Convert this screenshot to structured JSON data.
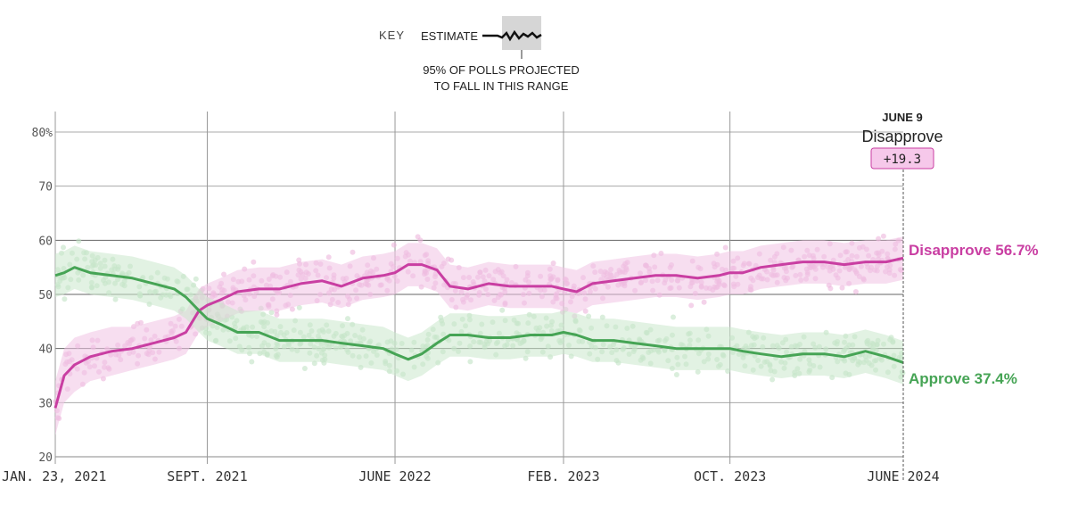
{
  "key": {
    "title": "KEY",
    "estimate_label": "ESTIMATE",
    "range_label_line1": "95% OF POLLS PROJECTED",
    "range_label_line2": "TO FALL IN THIS RANGE"
  },
  "annotation": {
    "date": "JUNE 9",
    "series": "Disapprove",
    "value": "+19.3"
  },
  "chart_data": {
    "type": "line",
    "title": "",
    "xlabel": "",
    "ylabel": "",
    "ylim": [
      20,
      80
    ],
    "y_ticks": [
      "20",
      "30",
      "40",
      "50",
      "60",
      "70",
      "80%"
    ],
    "y_tick_values": [
      20,
      30,
      40,
      50,
      60,
      70,
      80
    ],
    "x_ticks": [
      "JAN. 23, 2021",
      "SEPT. 2021",
      "JUNE 2022",
      "FEB. 2023",
      "OCT. 2023",
      "JUNE 2024"
    ],
    "x_tick_values": [
      "2021-01-23",
      "2021-09-01",
      "2022-06-01",
      "2023-02-01",
      "2023-10-01",
      "2024-06-09"
    ],
    "grid": true,
    "series": [
      {
        "name": "Disapprove",
        "end_label": "Disapprove 56.7%",
        "color": "#c93ea2",
        "band_color": "#f0c3e4",
        "dot_color": "#ecb5dc",
        "x": [
          "2021-01-23",
          "2021-02-05",
          "2021-02-20",
          "2021-03-15",
          "2021-04-15",
          "2021-05-15",
          "2021-06-15",
          "2021-07-15",
          "2021-08-01",
          "2021-08-20",
          "2021-09-01",
          "2021-09-20",
          "2021-10-15",
          "2021-11-15",
          "2021-12-15",
          "2022-01-15",
          "2022-02-15",
          "2022-03-15",
          "2022-04-15",
          "2022-05-15",
          "2022-06-01",
          "2022-06-20",
          "2022-07-10",
          "2022-08-01",
          "2022-08-20",
          "2022-09-15",
          "2022-10-15",
          "2022-11-15",
          "2022-12-15",
          "2023-01-15",
          "2023-02-01",
          "2023-02-20",
          "2023-03-15",
          "2023-04-15",
          "2023-05-15",
          "2023-06-15",
          "2023-07-15",
          "2023-08-15",
          "2023-09-15",
          "2023-10-01",
          "2023-10-20",
          "2023-11-15",
          "2023-12-15",
          "2024-01-15",
          "2024-02-15",
          "2024-03-15",
          "2024-04-15",
          "2024-05-15",
          "2024-06-09"
        ],
        "values": [
          29,
          35,
          37,
          38.5,
          39.5,
          40,
          41,
          42,
          43,
          47,
          48,
          49,
          50.5,
          51,
          51,
          52,
          52.5,
          51.5,
          53,
          53.5,
          54,
          55.5,
          55.5,
          54.5,
          51.5,
          51,
          52,
          51.5,
          51.5,
          51.5,
          51,
          50.5,
          52,
          52.5,
          53,
          53.5,
          53.5,
          53,
          53.5,
          54,
          54,
          55,
          55.5,
          56,
          56,
          55.5,
          56,
          56,
          56.7
        ],
        "band_lo": [
          24,
          30,
          32,
          34,
          35,
          36,
          37,
          38,
          39,
          43,
          44,
          45,
          46.5,
          47,
          47,
          48,
          48.5,
          47.5,
          49,
          49.5,
          50,
          51.5,
          51.5,
          50.5,
          47.5,
          47,
          48,
          47.5,
          47.5,
          47.5,
          47,
          46.5,
          48,
          48.5,
          49,
          49.5,
          49.5,
          49,
          49.5,
          50,
          50,
          51,
          51.5,
          52,
          52,
          51.5,
          52,
          52,
          52.7
        ],
        "band_hi": [
          34,
          40,
          42,
          43,
          44,
          44,
          45,
          46,
          47,
          51,
          52,
          53,
          54.5,
          55,
          55,
          56,
          56.5,
          55.5,
          57,
          57.5,
          58,
          59.5,
          59.5,
          58.5,
          55.5,
          55,
          56,
          55.5,
          55.5,
          55.5,
          55,
          54.5,
          56,
          56.5,
          57,
          57.5,
          57.5,
          57,
          57.5,
          58,
          58,
          59,
          59.5,
          60,
          60,
          59.5,
          60,
          60,
          60.7
        ]
      },
      {
        "name": "Approve",
        "end_label": "Approve 37.4%",
        "color": "#46a455",
        "band_color": "#cbe8cc",
        "dot_color": "#c2e2c4",
        "x": [
          "2021-01-23",
          "2021-02-05",
          "2021-02-20",
          "2021-03-15",
          "2021-04-15",
          "2021-05-15",
          "2021-06-15",
          "2021-07-15",
          "2021-08-01",
          "2021-08-20",
          "2021-09-01",
          "2021-09-20",
          "2021-10-15",
          "2021-11-15",
          "2021-12-15",
          "2022-01-15",
          "2022-02-15",
          "2022-03-15",
          "2022-04-15",
          "2022-05-15",
          "2022-06-01",
          "2022-06-20",
          "2022-07-10",
          "2022-08-01",
          "2022-08-20",
          "2022-09-15",
          "2022-10-15",
          "2022-11-15",
          "2022-12-15",
          "2023-01-15",
          "2023-02-01",
          "2023-02-20",
          "2023-03-15",
          "2023-04-15",
          "2023-05-15",
          "2023-06-15",
          "2023-07-15",
          "2023-08-15",
          "2023-09-15",
          "2023-10-01",
          "2023-10-20",
          "2023-11-15",
          "2023-12-15",
          "2024-01-15",
          "2024-02-15",
          "2024-03-15",
          "2024-04-15",
          "2024-05-15",
          "2024-06-09"
        ],
        "values": [
          53.5,
          54,
          55,
          54,
          53.5,
          53,
          52,
          51,
          49.5,
          47,
          45.5,
          44.5,
          43,
          43,
          41.5,
          41.5,
          41.5,
          41,
          40.5,
          40,
          39,
          38,
          39,
          41,
          42.5,
          42.5,
          42,
          42,
          42.5,
          42.5,
          43,
          42.5,
          41.5,
          41.5,
          41,
          40.5,
          40,
          40,
          40,
          40,
          39.5,
          39,
          38.5,
          39,
          39,
          38.5,
          39.5,
          38.5,
          37.4
        ],
        "band_lo": [
          49.5,
          50,
          51,
          50,
          49.5,
          49,
          48,
          47,
          45.5,
          43,
          41.5,
          40.5,
          39,
          39,
          37.5,
          37.5,
          37.5,
          37,
          36.5,
          36,
          35,
          34,
          35,
          37,
          38.5,
          38.5,
          38,
          38,
          38.5,
          38.5,
          39,
          38.5,
          37.5,
          37.5,
          37,
          36.5,
          36,
          36,
          36,
          36,
          35.5,
          35,
          34.5,
          35,
          35,
          34.5,
          35.5,
          34.5,
          33.4
        ],
        "band_hi": [
          57.5,
          58,
          59,
          58,
          57.5,
          57,
          56,
          55,
          53.5,
          51,
          49.5,
          48.5,
          47,
          47,
          45.5,
          45.5,
          45.5,
          45,
          44.5,
          44,
          43,
          42,
          43,
          45,
          46.5,
          46.5,
          46,
          46,
          46.5,
          46.5,
          47,
          46.5,
          45.5,
          45.5,
          45,
          44.5,
          44,
          44,
          44,
          44,
          43.5,
          43,
          42.5,
          43,
          43,
          42.5,
          43.5,
          42.5,
          41.4
        ]
      }
    ],
    "legend": "labels at right end of lines"
  }
}
